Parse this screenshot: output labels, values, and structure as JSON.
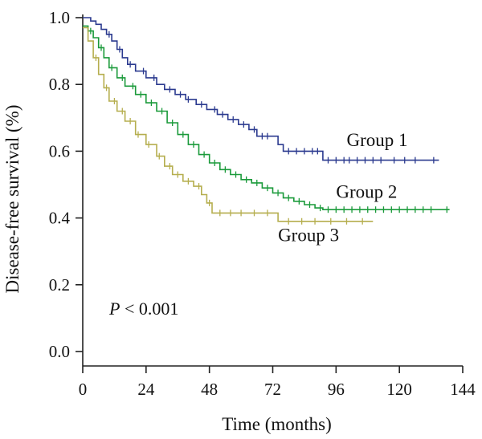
{
  "chart_data": {
    "type": "line",
    "subtype": "kaplan-meier",
    "title": "",
    "xlabel": "Time (months)",
    "ylabel": "Disease-free survival (%)",
    "xlim": [
      0,
      144
    ],
    "ylim": [
      0.0,
      1.0
    ],
    "x_ticks": [
      0,
      24,
      48,
      72,
      96,
      120,
      144
    ],
    "y_ticks": [
      0.0,
      0.2,
      0.4,
      0.6,
      0.8,
      1.0
    ],
    "x_tick_labels": [
      "0",
      "24",
      "48",
      "72",
      "96",
      "120",
      "144"
    ],
    "y_tick_labels": [
      "0.0",
      "0.2",
      "0.4",
      "0.6",
      "0.8",
      "1.0"
    ],
    "grid": false,
    "legend": "none",
    "annotation": "P < 0.001",
    "series": [
      {
        "name": "Group 1",
        "color": "#2b3a8f",
        "points": [
          [
            0,
            1.0
          ],
          [
            3,
            0.99
          ],
          [
            5,
            0.98
          ],
          [
            7,
            0.965
          ],
          [
            9,
            0.95
          ],
          [
            11,
            0.93
          ],
          [
            13,
            0.905
          ],
          [
            15,
            0.88
          ],
          [
            17,
            0.86
          ],
          [
            20,
            0.84
          ],
          [
            24,
            0.82
          ],
          [
            28,
            0.8
          ],
          [
            31,
            0.785
          ],
          [
            35,
            0.77
          ],
          [
            39,
            0.755
          ],
          [
            43,
            0.74
          ],
          [
            47,
            0.725
          ],
          [
            51,
            0.71
          ],
          [
            55,
            0.695
          ],
          [
            59,
            0.68
          ],
          [
            63,
            0.665
          ],
          [
            66,
            0.645
          ],
          [
            72,
            0.645
          ],
          [
            74,
            0.62
          ],
          [
            76,
            0.6
          ],
          [
            90,
            0.6
          ],
          [
            91,
            0.573
          ],
          [
            135,
            0.573
          ]
        ],
        "censor_x": [
          10,
          14,
          18,
          23,
          27,
          33,
          37,
          40,
          45,
          50,
          53,
          57,
          61,
          65,
          68,
          70,
          78,
          81,
          84,
          87,
          89,
          93,
          96,
          99,
          101,
          104,
          107,
          110,
          113,
          118,
          122,
          126,
          133
        ]
      },
      {
        "name": "Group 2",
        "color": "#1a9a3a",
        "points": [
          [
            0,
            0.975
          ],
          [
            2,
            0.96
          ],
          [
            4,
            0.94
          ],
          [
            6,
            0.91
          ],
          [
            8,
            0.88
          ],
          [
            10,
            0.85
          ],
          [
            13,
            0.82
          ],
          [
            16,
            0.795
          ],
          [
            20,
            0.77
          ],
          [
            24,
            0.745
          ],
          [
            28,
            0.72
          ],
          [
            32,
            0.685
          ],
          [
            36,
            0.65
          ],
          [
            40,
            0.62
          ],
          [
            44,
            0.59
          ],
          [
            48,
            0.565
          ],
          [
            52,
            0.545
          ],
          [
            56,
            0.53
          ],
          [
            60,
            0.515
          ],
          [
            64,
            0.505
          ],
          [
            68,
            0.49
          ],
          [
            72,
            0.475
          ],
          [
            76,
            0.46
          ],
          [
            80,
            0.45
          ],
          [
            84,
            0.44
          ],
          [
            88,
            0.43
          ],
          [
            91,
            0.425
          ],
          [
            139,
            0.425
          ]
        ],
        "censor_x": [
          3,
          7,
          11,
          15,
          19,
          22,
          26,
          30,
          34,
          38,
          42,
          46,
          50,
          54,
          58,
          62,
          66,
          70,
          74,
          78,
          82,
          86,
          90,
          93,
          96,
          99,
          102,
          105,
          108,
          111,
          114,
          117,
          120,
          123,
          126,
          129,
          132,
          138
        ]
      },
      {
        "name": "Group 3",
        "color": "#b5ae4e",
        "points": [
          [
            0,
            0.97
          ],
          [
            2,
            0.93
          ],
          [
            4,
            0.88
          ],
          [
            6,
            0.83
          ],
          [
            8,
            0.79
          ],
          [
            10,
            0.75
          ],
          [
            13,
            0.72
          ],
          [
            16,
            0.69
          ],
          [
            20,
            0.65
          ],
          [
            24,
            0.62
          ],
          [
            28,
            0.585
          ],
          [
            31,
            0.555
          ],
          [
            34,
            0.53
          ],
          [
            38,
            0.51
          ],
          [
            42,
            0.495
          ],
          [
            45,
            0.47
          ],
          [
            47,
            0.445
          ],
          [
            49,
            0.415
          ],
          [
            72,
            0.415
          ],
          [
            74,
            0.39
          ],
          [
            110,
            0.39
          ]
        ],
        "censor_x": [
          5,
          9,
          12,
          15,
          18,
          21,
          25,
          29,
          33,
          36,
          40,
          44,
          48,
          52,
          56,
          60,
          65,
          70,
          78,
          83,
          88,
          94,
          100,
          106
        ]
      }
    ],
    "series_labels": [
      {
        "name": "Group 1",
        "x": 100,
        "y": 0.615
      },
      {
        "name": "Group 2",
        "x": 96,
        "y": 0.46
      },
      {
        "name": "Group 3",
        "x": 74,
        "y": 0.33
      }
    ]
  }
}
